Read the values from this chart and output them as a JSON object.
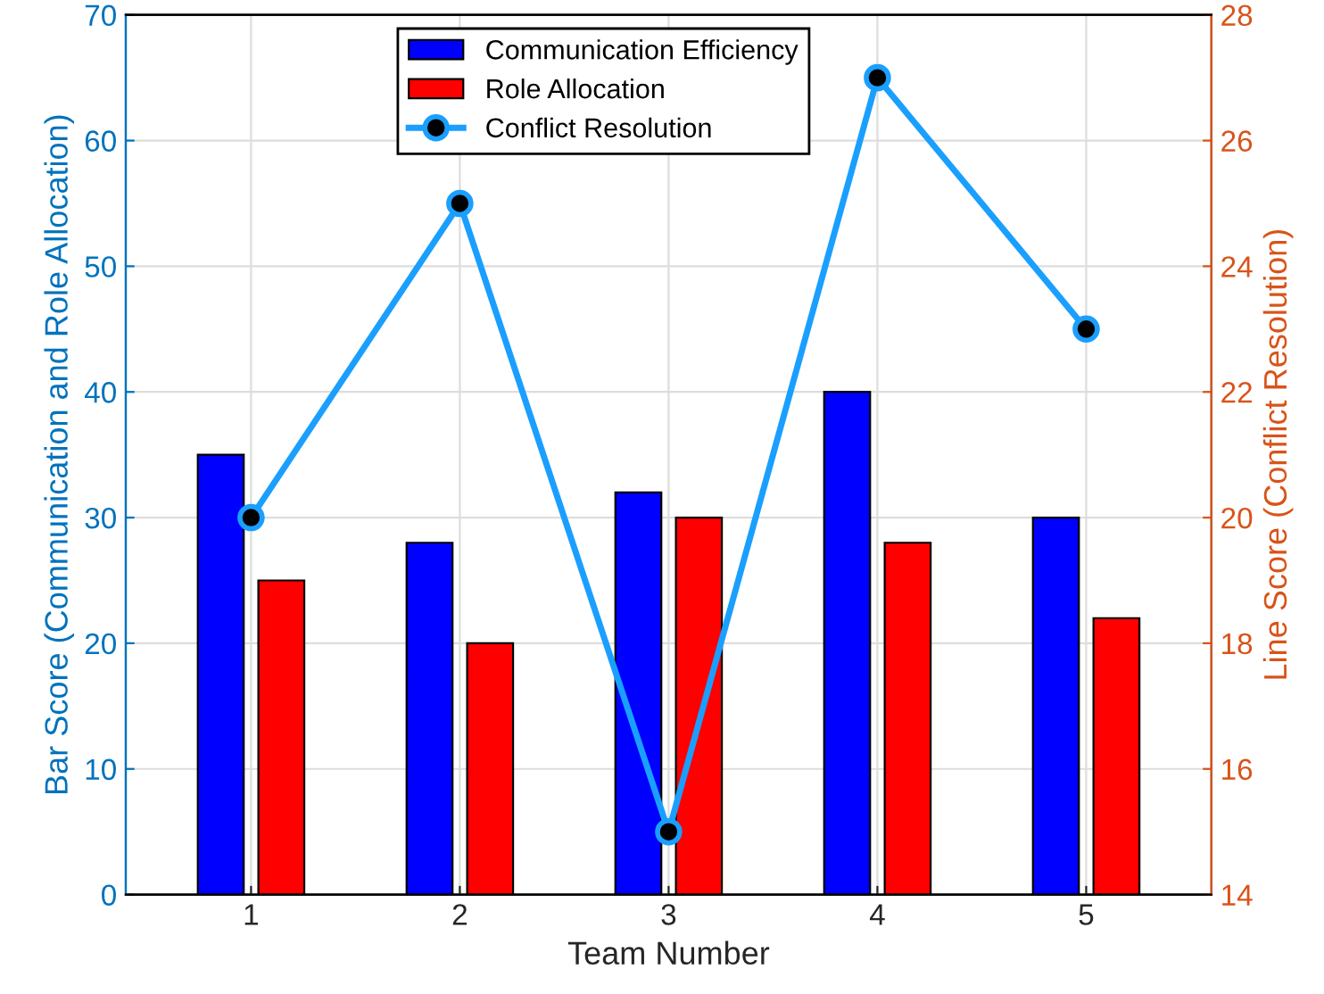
{
  "chart_data": {
    "type": "bar",
    "xlabel": "Team Number",
    "ylabel": "Bar Score (Communication and Role Allocation)",
    "y2label": "Line Score (Conflict Resolution)",
    "categories": [
      "1",
      "2",
      "3",
      "4",
      "5"
    ],
    "series": [
      {
        "name": "Communication Efficiency",
        "color": "#0000ff",
        "values": [
          35,
          28,
          32,
          40,
          30
        ]
      },
      {
        "name": "Role Allocation",
        "color": "#ff0000",
        "values": [
          25,
          20,
          30,
          28,
          22
        ]
      },
      {
        "name": "Conflict Resolution",
        "color": "#1a9fff",
        "values": [
          20,
          25,
          15,
          27,
          23
        ],
        "type": "line",
        "axis": "y2",
        "marker": "circle",
        "line_style": "solid"
      }
    ],
    "ylim": [
      0,
      70
    ],
    "yticks": [
      0,
      10,
      20,
      30,
      40,
      50,
      60,
      70
    ],
    "y2lim": [
      14,
      28
    ],
    "y2ticks": [
      14,
      16,
      18,
      20,
      22,
      24,
      26,
      28
    ],
    "grid": true,
    "legend": "top"
  }
}
